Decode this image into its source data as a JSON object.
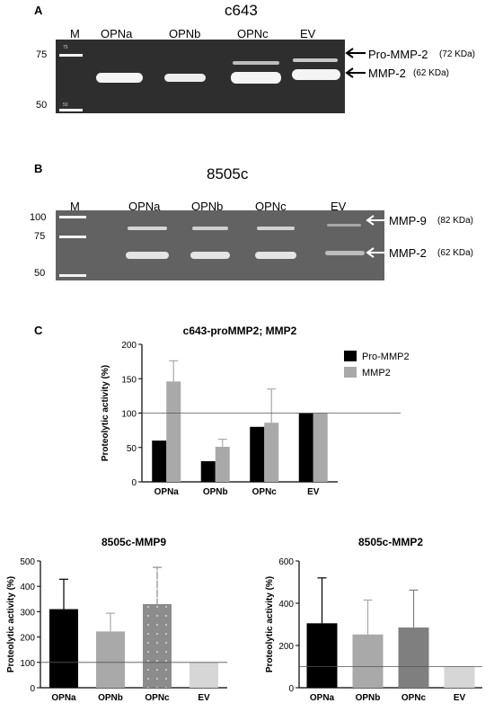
{
  "panel_a": {
    "letter": "A",
    "title": "c643",
    "lane_labels": [
      "M",
      "OPNa",
      "OPNb",
      "OPNc",
      "EV"
    ],
    "marker_values": [
      "75",
      "50"
    ],
    "ladder_tags": [
      "75",
      "50"
    ],
    "band_labels": [
      {
        "name": "Pro-MMP-2",
        "kda": "(72 KDa)"
      },
      {
        "name": "MMP-2",
        "kda": "(62 KDa)"
      }
    ]
  },
  "panel_b": {
    "letter": "B",
    "title": "8505c",
    "lane_labels": [
      "M",
      "OPNa",
      "OPNb",
      "OPNc",
      "EV"
    ],
    "marker_values": [
      "100",
      "75",
      "50"
    ],
    "band_labels": [
      {
        "name": "MMP-9",
        "kda": "(82 KDa)"
      },
      {
        "name": "MMP-2",
        "kda": "(62 KDa)"
      }
    ]
  },
  "panel_c": {
    "letter": "C"
  },
  "colors": {
    "gel_background": "#2e2e2e",
    "band": "#f2f2f2",
    "black_bar": "#000000",
    "light_gray_bar": "#a9a9a9",
    "mid_gray_bar": "#7f7f7f",
    "dotted_bar": "#8c8c8c",
    "pale_bar": "#d6d6d6"
  },
  "chart_data": [
    {
      "type": "bar",
      "title": "c643-proMMP2; MMP2",
      "ylabel": "Proteolytic activity (%)",
      "xlabel": "",
      "categories": [
        "OPNa",
        "OPNb",
        "OPNc",
        "EV"
      ],
      "ylim": [
        0,
        200
      ],
      "yticks": [
        0,
        50,
        100,
        150,
        200
      ],
      "reference_line": 100,
      "legend_position": "top-right",
      "series": [
        {
          "name": "Pro-MMP2",
          "values": [
            60,
            30,
            80,
            100
          ],
          "errors": [
            0,
            0,
            0,
            0
          ]
        },
        {
          "name": "MMP2",
          "values": [
            146,
            51,
            86,
            100
          ],
          "errors": [
            30,
            11,
            49,
            0
          ]
        }
      ]
    },
    {
      "type": "bar",
      "title": "8505c-MMP9",
      "ylabel": "Proteolytic activity (%)",
      "xlabel": "",
      "categories": [
        "OPNa",
        "OPNb",
        "OPNc",
        "EV"
      ],
      "ylim": [
        0,
        500
      ],
      "yticks": [
        0,
        100,
        200,
        300,
        400,
        500
      ],
      "reference_line": 100,
      "values": [
        310,
        222,
        330,
        100
      ],
      "errors": [
        118,
        72,
        145,
        0
      ]
    },
    {
      "type": "bar",
      "title": "8505c-MMP2",
      "ylabel": "Proteolytic activity (%)",
      "xlabel": "",
      "categories": [
        "OPNa",
        "OPNb",
        "OPNc",
        "EV"
      ],
      "ylim": [
        0,
        600
      ],
      "yticks": [
        0,
        200,
        400,
        600
      ],
      "reference_line": 100,
      "values": [
        305,
        252,
        285,
        100
      ],
      "errors": [
        215,
        163,
        177,
        0
      ]
    }
  ]
}
